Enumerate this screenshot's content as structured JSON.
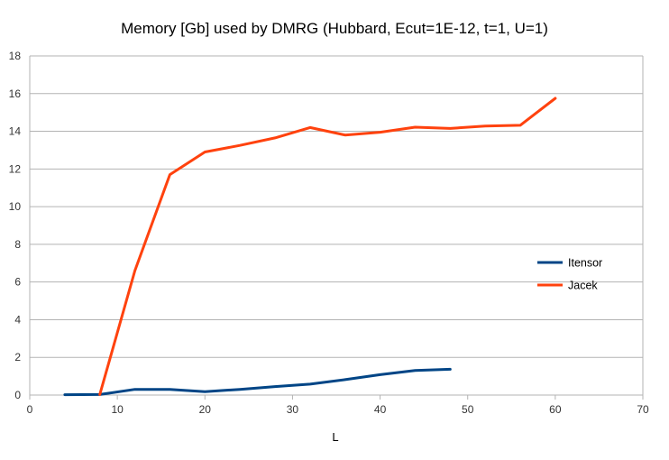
{
  "chart_data": {
    "type": "line",
    "title": "Memory [Gb] used by DMRG (Hubbard, Ecut=1E-12, t=1, U=1)",
    "xlabel": "L",
    "ylabel": "",
    "xlim": [
      0,
      70
    ],
    "ylim": [
      0,
      18
    ],
    "xticks": [
      0,
      10,
      20,
      30,
      40,
      50,
      60,
      70
    ],
    "yticks": [
      0,
      2,
      4,
      6,
      8,
      10,
      12,
      14,
      16,
      18
    ],
    "grid": "horizontal",
    "legend_position": "right",
    "series": [
      {
        "name": "Itensor",
        "color": "#004586",
        "x": [
          4,
          8,
          12,
          16,
          20,
          24,
          28,
          32,
          36,
          40,
          44,
          48
        ],
        "y": [
          0.02,
          0.03,
          0.3,
          0.3,
          0.18,
          0.3,
          0.45,
          0.58,
          0.82,
          1.08,
          1.3,
          1.37
        ]
      },
      {
        "name": "Jacek",
        "color": "#ff420e",
        "x": [
          8,
          12,
          16,
          20,
          24,
          28,
          32,
          36,
          40,
          44,
          48,
          52,
          56,
          60
        ],
        "y": [
          0.03,
          6.6,
          11.7,
          12.9,
          13.25,
          13.65,
          14.2,
          13.8,
          13.95,
          14.22,
          14.15,
          14.28,
          14.32,
          15.75
        ]
      }
    ]
  }
}
